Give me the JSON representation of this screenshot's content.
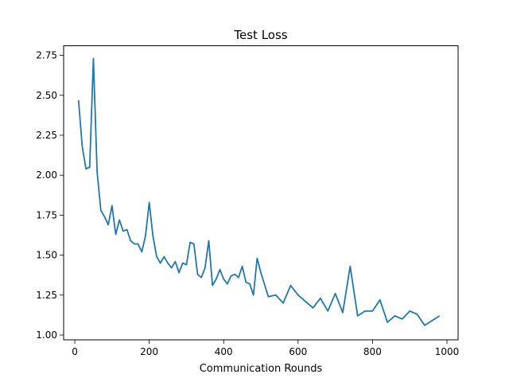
{
  "chart_data": {
    "type": "line",
    "title": "Test Loss",
    "xlabel": "Communication Rounds",
    "ylabel": "",
    "xlim": [
      -30,
      1030
    ],
    "ylim": [
      0.97,
      2.81
    ],
    "xticks": [
      0,
      200,
      400,
      600,
      800,
      1000
    ],
    "yticks": [
      1.0,
      1.25,
      1.5,
      1.75,
      2.0,
      2.25,
      2.5,
      2.75
    ],
    "xtick_labels": [
      "0",
      "200",
      "400",
      "600",
      "800",
      "1000"
    ],
    "ytick_labels": [
      "1.00",
      "1.25",
      "1.50",
      "1.75",
      "2.00",
      "2.25",
      "2.50",
      "2.75"
    ],
    "grid": false,
    "series": [
      {
        "color": "#1f77b4",
        "x": [
          10,
          20,
          30,
          40,
          50,
          60,
          70,
          80,
          90,
          100,
          110,
          120,
          130,
          140,
          150,
          160,
          170,
          180,
          190,
          200,
          210,
          220,
          230,
          240,
          250,
          260,
          270,
          280,
          290,
          300,
          310,
          320,
          330,
          340,
          350,
          360,
          370,
          380,
          390,
          400,
          410,
          420,
          430,
          440,
          450,
          460,
          470,
          480,
          490,
          500,
          520,
          540,
          560,
          580,
          600,
          620,
          640,
          660,
          680,
          700,
          720,
          740,
          760,
          780,
          800,
          820,
          840,
          860,
          880,
          900,
          920,
          940,
          960,
          980
        ],
        "y": [
          2.47,
          2.18,
          2.04,
          2.05,
          2.73,
          2.02,
          1.78,
          1.74,
          1.69,
          1.81,
          1.63,
          1.72,
          1.65,
          1.66,
          1.59,
          1.57,
          1.57,
          1.52,
          1.62,
          1.83,
          1.62,
          1.49,
          1.45,
          1.49,
          1.45,
          1.42,
          1.46,
          1.39,
          1.45,
          1.44,
          1.58,
          1.57,
          1.38,
          1.36,
          1.42,
          1.59,
          1.31,
          1.35,
          1.41,
          1.35,
          1.32,
          1.37,
          1.38,
          1.36,
          1.43,
          1.33,
          1.32,
          1.25,
          1.48,
          1.39,
          1.24,
          1.25,
          1.2,
          1.31,
          1.25,
          1.21,
          1.17,
          1.23,
          1.15,
          1.26,
          1.14,
          1.43,
          1.12,
          1.15,
          1.15,
          1.22,
          1.08,
          1.12,
          1.1,
          1.15,
          1.13,
          1.06,
          1.09,
          1.12
        ]
      }
    ]
  }
}
